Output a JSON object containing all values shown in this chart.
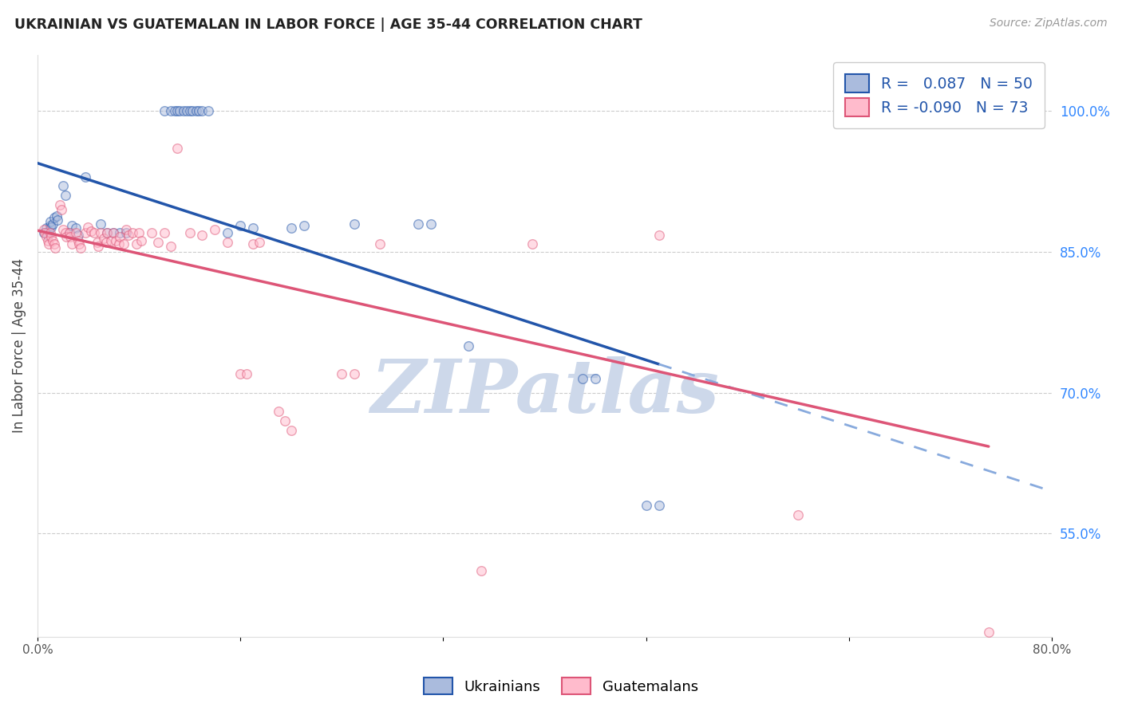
{
  "title": "UKRAINIAN VS GUATEMALAN IN LABOR FORCE | AGE 35-44 CORRELATION CHART",
  "source": "Source: ZipAtlas.com",
  "ylabel": "In Labor Force | Age 35-44",
  "xlim": [
    0.0,
    0.8
  ],
  "ylim": [
    0.44,
    1.06
  ],
  "ytick_labels": [
    "55.0%",
    "70.0%",
    "85.0%",
    "100.0%"
  ],
  "ytick_vals": [
    0.55,
    0.7,
    0.85,
    1.0
  ],
  "xtick_labels": [
    "0.0%",
    "",
    "",
    "",
    "",
    "80.0%"
  ],
  "xtick_vals": [
    0.0,
    0.16,
    0.32,
    0.48,
    0.64,
    0.8
  ],
  "blue_scatter": [
    [
      0.005,
      0.87
    ],
    [
      0.007,
      0.875
    ],
    [
      0.008,
      0.868
    ],
    [
      0.009,
      0.872
    ],
    [
      0.01,
      0.878
    ],
    [
      0.01,
      0.882
    ],
    [
      0.011,
      0.876
    ],
    [
      0.012,
      0.88
    ],
    [
      0.013,
      0.886
    ],
    [
      0.015,
      0.888
    ],
    [
      0.016,
      0.884
    ],
    [
      0.02,
      0.92
    ],
    [
      0.022,
      0.91
    ],
    [
      0.025,
      0.87
    ],
    [
      0.027,
      0.878
    ],
    [
      0.03,
      0.875
    ],
    [
      0.032,
      0.868
    ],
    [
      0.038,
      0.93
    ],
    [
      0.05,
      0.88
    ],
    [
      0.055,
      0.87
    ],
    [
      0.06,
      0.87
    ],
    [
      0.065,
      0.87
    ],
    [
      0.07,
      0.87
    ],
    [
      0.1,
      1.0
    ],
    [
      0.105,
      1.0
    ],
    [
      0.108,
      1.0
    ],
    [
      0.11,
      1.0
    ],
    [
      0.112,
      1.0
    ],
    [
      0.115,
      1.0
    ],
    [
      0.118,
      1.0
    ],
    [
      0.12,
      1.0
    ],
    [
      0.122,
      1.0
    ],
    [
      0.125,
      1.0
    ],
    [
      0.127,
      1.0
    ],
    [
      0.13,
      1.0
    ],
    [
      0.135,
      1.0
    ],
    [
      0.15,
      0.87
    ],
    [
      0.16,
      0.878
    ],
    [
      0.17,
      0.875
    ],
    [
      0.2,
      0.875
    ],
    [
      0.21,
      0.878
    ],
    [
      0.25,
      0.88
    ],
    [
      0.3,
      0.88
    ],
    [
      0.31,
      0.88
    ],
    [
      0.34,
      0.75
    ],
    [
      0.43,
      0.715
    ],
    [
      0.44,
      0.715
    ],
    [
      0.48,
      0.58
    ],
    [
      0.49,
      0.58
    ]
  ],
  "pink_scatter": [
    [
      0.005,
      0.874
    ],
    [
      0.006,
      0.87
    ],
    [
      0.007,
      0.866
    ],
    [
      0.008,
      0.862
    ],
    [
      0.009,
      0.858
    ],
    [
      0.01,
      0.87
    ],
    [
      0.011,
      0.866
    ],
    [
      0.012,
      0.862
    ],
    [
      0.013,
      0.858
    ],
    [
      0.014,
      0.854
    ],
    [
      0.018,
      0.9
    ],
    [
      0.019,
      0.895
    ],
    [
      0.02,
      0.874
    ],
    [
      0.022,
      0.87
    ],
    [
      0.023,
      0.866
    ],
    [
      0.025,
      0.87
    ],
    [
      0.026,
      0.866
    ],
    [
      0.027,
      0.858
    ],
    [
      0.03,
      0.87
    ],
    [
      0.032,
      0.862
    ],
    [
      0.033,
      0.858
    ],
    [
      0.034,
      0.854
    ],
    [
      0.038,
      0.87
    ],
    [
      0.04,
      0.876
    ],
    [
      0.042,
      0.872
    ],
    [
      0.045,
      0.87
    ],
    [
      0.047,
      0.86
    ],
    [
      0.048,
      0.856
    ],
    [
      0.05,
      0.87
    ],
    [
      0.052,
      0.864
    ],
    [
      0.054,
      0.86
    ],
    [
      0.055,
      0.87
    ],
    [
      0.058,
      0.862
    ],
    [
      0.06,
      0.87
    ],
    [
      0.062,
      0.862
    ],
    [
      0.064,
      0.858
    ],
    [
      0.065,
      0.866
    ],
    [
      0.068,
      0.858
    ],
    [
      0.07,
      0.874
    ],
    [
      0.072,
      0.868
    ],
    [
      0.075,
      0.87
    ],
    [
      0.078,
      0.858
    ],
    [
      0.08,
      0.87
    ],
    [
      0.082,
      0.862
    ],
    [
      0.09,
      0.87
    ],
    [
      0.095,
      0.86
    ],
    [
      0.1,
      0.87
    ],
    [
      0.105,
      0.856
    ],
    [
      0.11,
      0.96
    ],
    [
      0.12,
      0.87
    ],
    [
      0.13,
      0.868
    ],
    [
      0.14,
      0.874
    ],
    [
      0.15,
      0.86
    ],
    [
      0.16,
      0.72
    ],
    [
      0.165,
      0.72
    ],
    [
      0.17,
      0.858
    ],
    [
      0.175,
      0.86
    ],
    [
      0.19,
      0.68
    ],
    [
      0.195,
      0.67
    ],
    [
      0.2,
      0.66
    ],
    [
      0.24,
      0.72
    ],
    [
      0.25,
      0.72
    ],
    [
      0.27,
      0.858
    ],
    [
      0.35,
      0.51
    ],
    [
      0.39,
      0.858
    ],
    [
      0.49,
      0.868
    ],
    [
      0.6,
      0.57
    ],
    [
      0.74,
      1.0
    ],
    [
      0.75,
      0.445
    ]
  ],
  "blue_R": 0.087,
  "pink_R": -0.09,
  "blue_line_color": "#2255aa",
  "blue_dash_color": "#88aadd",
  "pink_line_color": "#dd5577",
  "blue_fill_color": "#aabbdd",
  "pink_fill_color": "#ffbbcc",
  "scatter_alpha": 0.5,
  "scatter_edge_alpha": 0.7,
  "scatter_size": 70,
  "background_color": "#ffffff",
  "grid_color": "#cccccc",
  "title_color": "#222222",
  "source_color": "#999999",
  "axis_label_color": "#444444",
  "right_tick_color": "#3388ff",
  "watermark_color": "#cdd8ea",
  "legend_R_color": "#2255aa",
  "legend_R2_color": "#dd5577"
}
